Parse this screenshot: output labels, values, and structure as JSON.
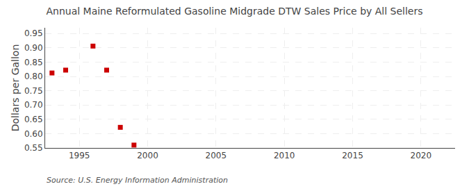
{
  "chart_data": {
    "type": "scatter",
    "title": "Annual Maine Reformulated Gasoline Midgrade DTW Sales Price by All Sellers",
    "y_label": "Dollars per Gallon",
    "annotations": [
      "Source: U.S. Energy Information Administration"
    ],
    "x": [
      1993,
      1994,
      1996,
      1997,
      1998,
      1999
    ],
    "values": [
      0.812,
      0.822,
      0.906,
      0.822,
      0.622,
      0.56
    ],
    "color": "#cc0000",
    "marker": "square",
    "xlim": [
      1992.5,
      2022.5
    ],
    "xticks": [
      1995,
      2000,
      2005,
      2010,
      2015,
      2020
    ],
    "ylim": [
      0.55,
      0.97
    ],
    "yticks": [
      0.55,
      {
        "value": 0.6,
        "label": "0.60"
      },
      0.65,
      {
        "value": 0.7,
        "label": "0.70"
      },
      0.75,
      {
        "value": 0.8,
        "label": "0.80"
      },
      0.85,
      {
        "value": 0.9,
        "label": "0.90"
      },
      0.95
    ],
    "grid": true
  }
}
